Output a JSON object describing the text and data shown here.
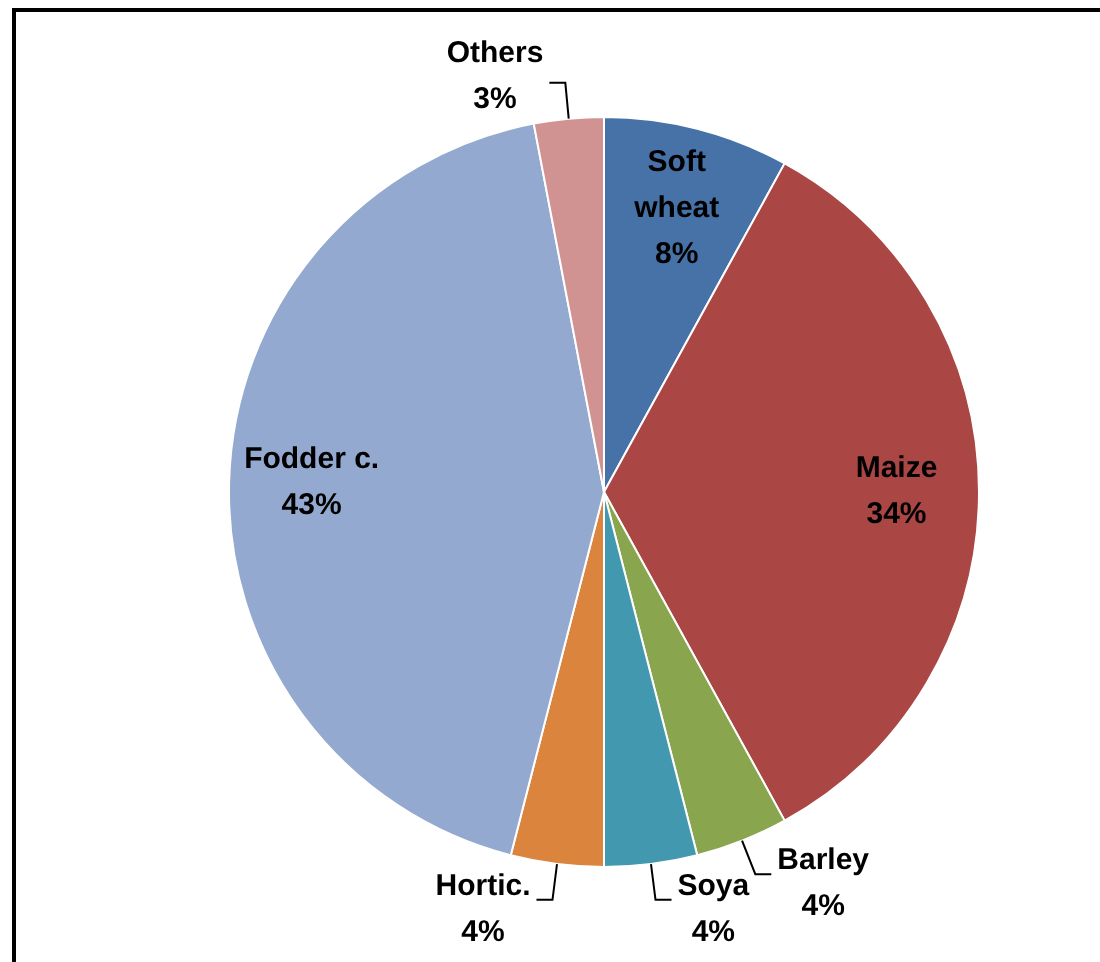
{
  "chart_data": {
    "type": "pie",
    "categories": [
      "Soft wheat",
      "Maize",
      "Barley",
      "Soya",
      "Hortic.",
      "Fodder c.",
      "Others"
    ],
    "values": [
      8,
      34,
      4,
      4,
      4,
      43,
      3
    ],
    "value_labels": [
      "8%",
      "34%",
      "4%",
      "4%",
      "4%",
      "43%",
      "3%"
    ],
    "colors": [
      "#4672a8",
      "#aa4644",
      "#89a54e",
      "#4198af",
      "#db843d",
      "#93a9cf",
      "#d19392"
    ]
  }
}
